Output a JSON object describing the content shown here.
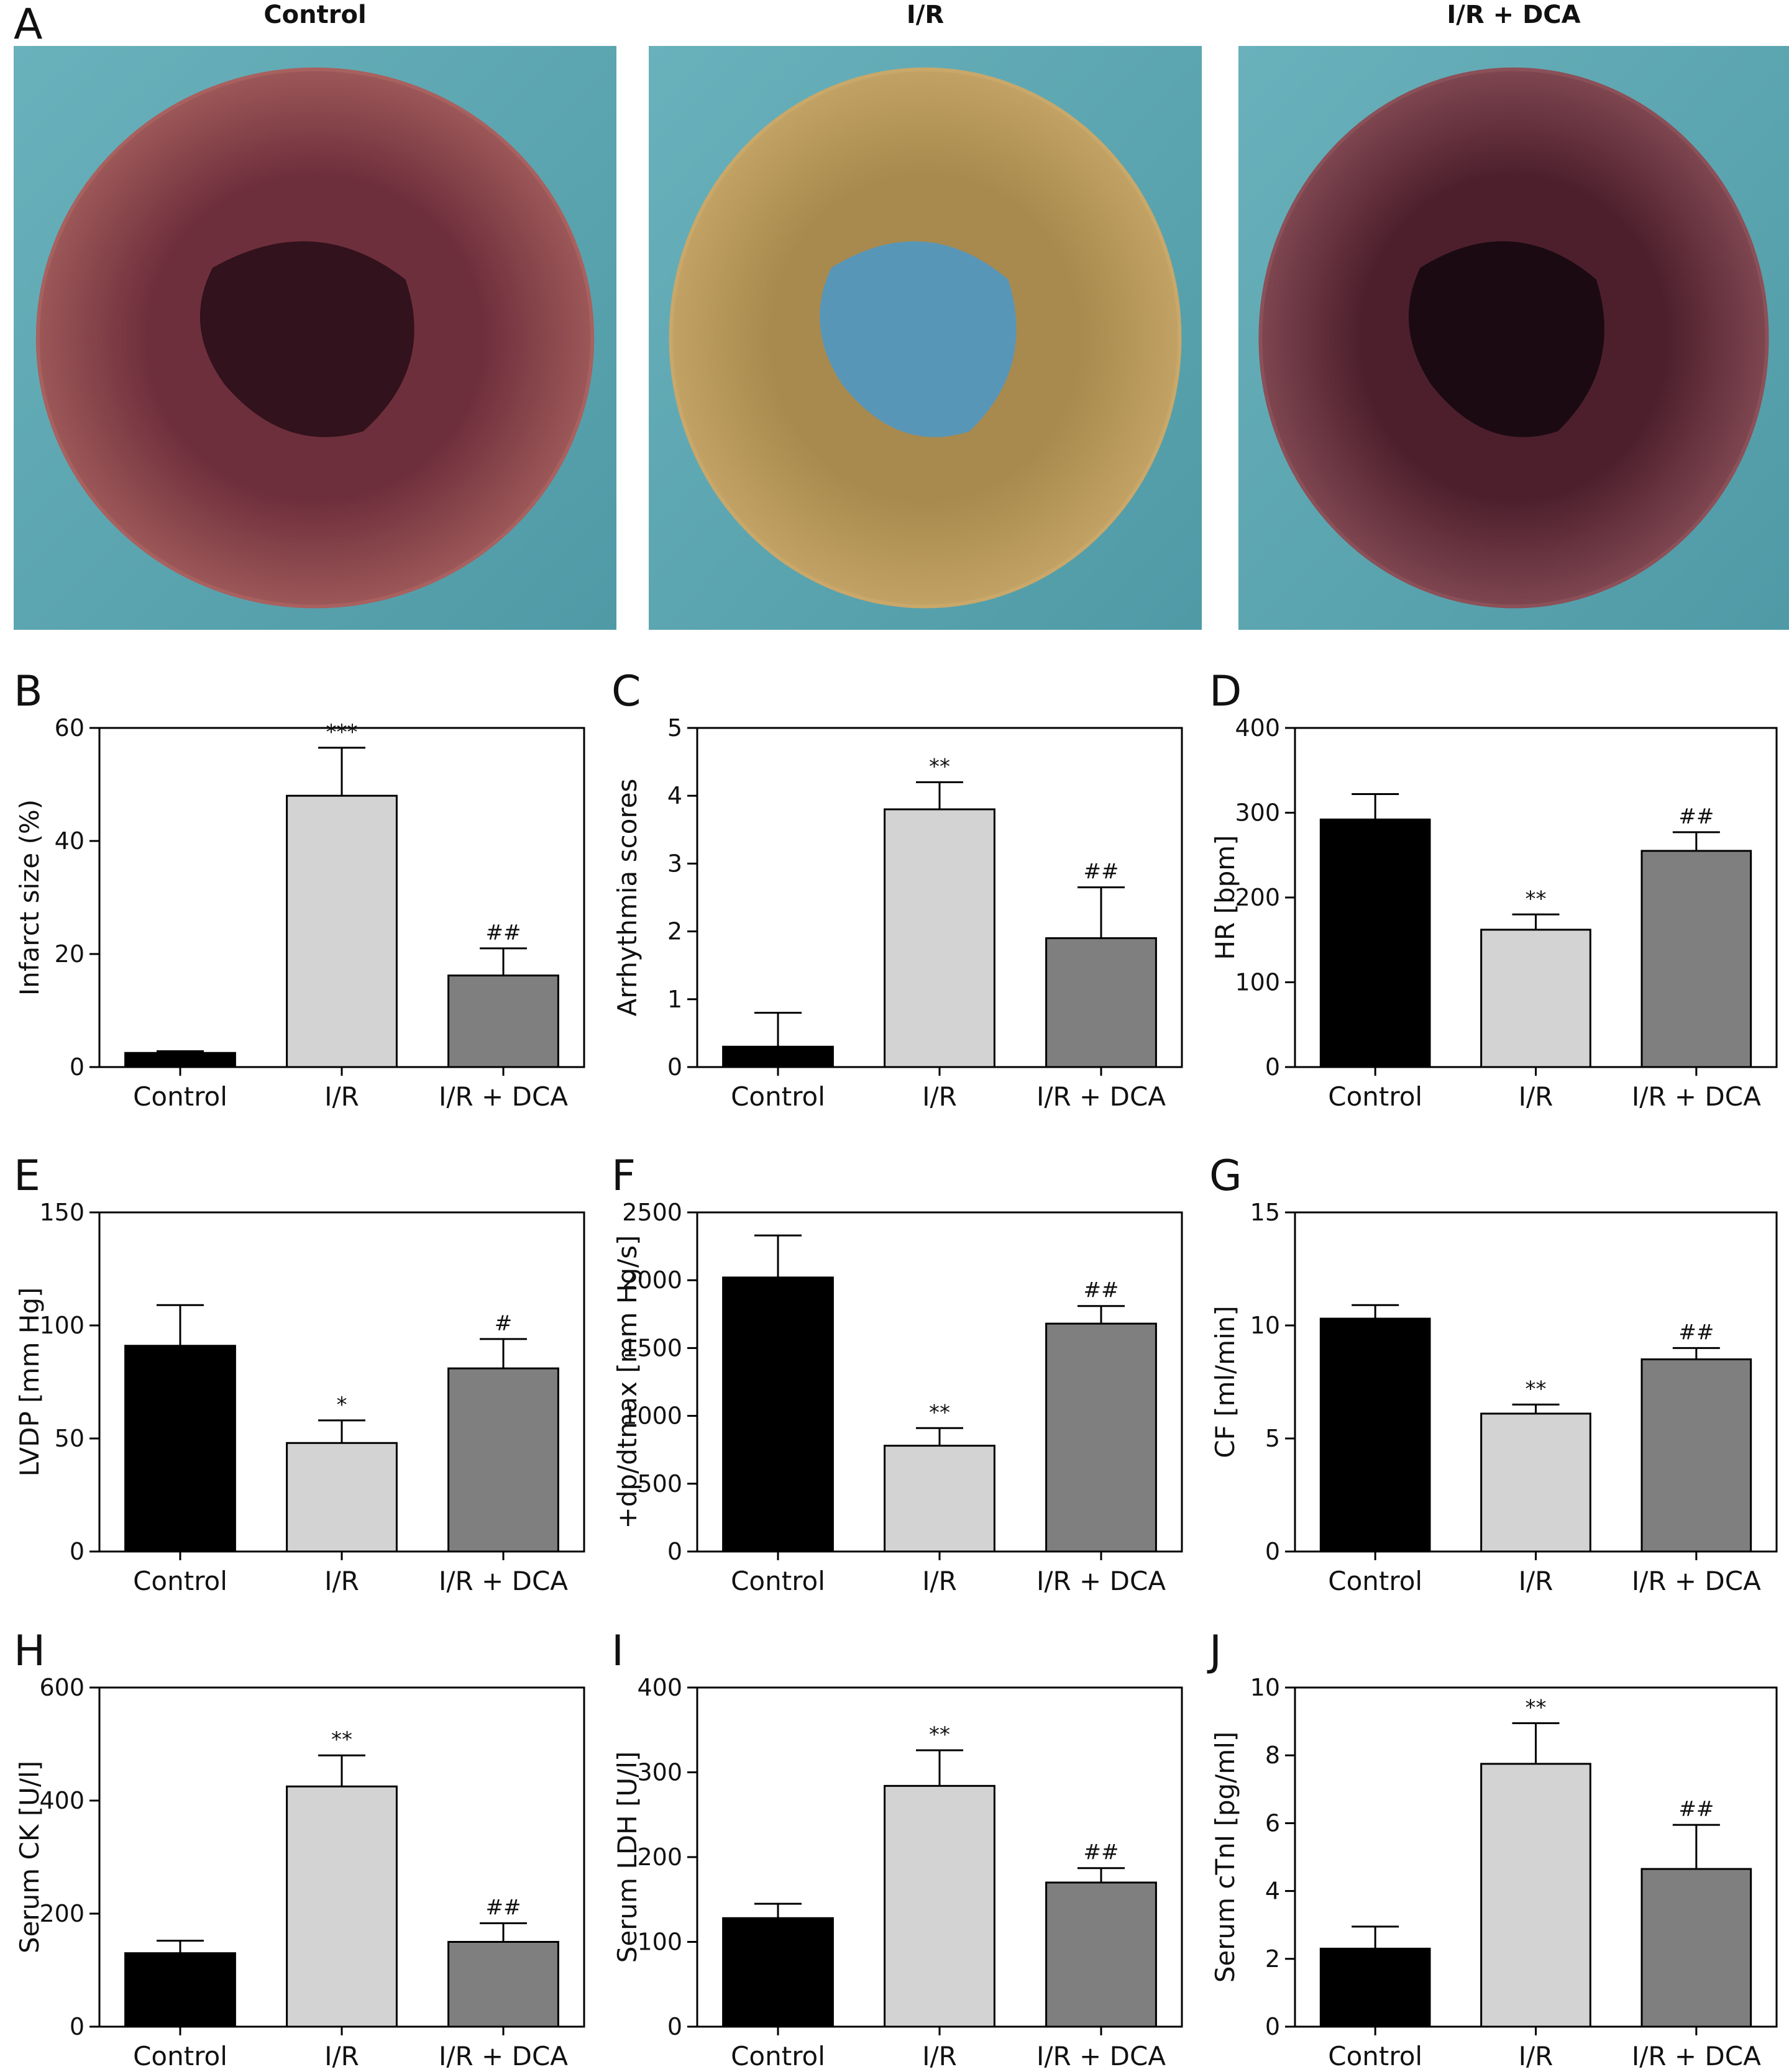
{
  "figure": {
    "panel_a": {
      "letter": "A",
      "photos": [
        {
          "label": "Control",
          "tissue": "#6e2f3c",
          "rim": "#a8615f",
          "cavity": "#2b1018"
        },
        {
          "label": "I/R",
          "tissue": "#a88a4e",
          "rim": "#c9a86a",
          "cavity": "#4f97c4"
        },
        {
          "label": "I/R + DCA",
          "tissue": "#4d1f2d",
          "rim": "#8b5058",
          "cavity": "#160810"
        }
      ]
    }
  },
  "chart_data": [
    {
      "id": "B",
      "type": "bar",
      "categories": [
        "Control",
        "I/R",
        "I/R + DCA"
      ],
      "values": [
        2.5,
        48,
        16.2
      ],
      "errors": [
        0.3,
        8.5,
        4.8
      ],
      "significance": [
        "",
        "***",
        "##"
      ],
      "ylabel": "Infarct size (%)",
      "ylim": [
        0,
        60
      ],
      "yticks": [
        0,
        20,
        40,
        60
      ],
      "colors": [
        "#000000",
        "#d3d3d3",
        "#7f7f7f"
      ]
    },
    {
      "id": "C",
      "type": "bar",
      "categories": [
        "Control",
        "I/R",
        "I/R + DCA"
      ],
      "values": [
        0.3,
        3.8,
        1.9
      ],
      "errors": [
        0.5,
        0.4,
        0.75
      ],
      "significance": [
        "",
        "**",
        "##"
      ],
      "ylabel": "Arrhythmia scores",
      "ylim": [
        0,
        5
      ],
      "yticks": [
        0,
        1,
        2,
        3,
        4,
        5
      ],
      "colors": [
        "#000000",
        "#d3d3d3",
        "#7f7f7f"
      ]
    },
    {
      "id": "D",
      "type": "bar",
      "categories": [
        "Control",
        "I/R",
        "I/R + DCA"
      ],
      "values": [
        292,
        162,
        255
      ],
      "errors": [
        30,
        18,
        22
      ],
      "significance": [
        "",
        "**",
        "##"
      ],
      "ylabel": "HR [bpm]",
      "ylim": [
        0,
        400
      ],
      "yticks": [
        0,
        100,
        200,
        300,
        400
      ],
      "colors": [
        "#000000",
        "#d3d3d3",
        "#7f7f7f"
      ]
    },
    {
      "id": "E",
      "type": "bar",
      "categories": [
        "Control",
        "I/R",
        "I/R + DCA"
      ],
      "values": [
        91,
        48,
        81
      ],
      "errors": [
        18,
        10,
        13
      ],
      "significance": [
        "",
        "*",
        "#"
      ],
      "ylabel": "LVDP [mm Hg]",
      "ylim": [
        0,
        150
      ],
      "yticks": [
        0,
        50,
        100,
        150
      ],
      "colors": [
        "#000000",
        "#d3d3d3",
        "#7f7f7f"
      ]
    },
    {
      "id": "F",
      "type": "bar",
      "categories": [
        "Control",
        "I/R",
        "I/R + DCA"
      ],
      "values": [
        2020,
        780,
        1680
      ],
      "errors": [
        310,
        130,
        130
      ],
      "significance": [
        "",
        "**",
        "##"
      ],
      "ylabel": "+dp/dtmax [mm Hg/s]",
      "ylim": [
        0,
        2500
      ],
      "yticks": [
        0,
        500,
        1000,
        1500,
        2000,
        2500
      ],
      "colors": [
        "#000000",
        "#d3d3d3",
        "#7f7f7f"
      ]
    },
    {
      "id": "G",
      "type": "bar",
      "categories": [
        "Control",
        "I/R",
        "I/R + DCA"
      ],
      "values": [
        10.3,
        6.1,
        8.5
      ],
      "errors": [
        0.6,
        0.4,
        0.5
      ],
      "significance": [
        "",
        "**",
        "##"
      ],
      "ylabel": "CF [ml/min]",
      "ylim": [
        0,
        15
      ],
      "yticks": [
        0,
        5,
        10,
        15
      ],
      "colors": [
        "#000000",
        "#d3d3d3",
        "#7f7f7f"
      ]
    },
    {
      "id": "H",
      "type": "bar",
      "categories": [
        "Control",
        "I/R",
        "I/R + DCA"
      ],
      "values": [
        130,
        425,
        150
      ],
      "errors": [
        22,
        55,
        33
      ],
      "significance": [
        "",
        "**",
        "##"
      ],
      "ylabel": "Serum CK [U/l]",
      "ylim": [
        0,
        600
      ],
      "yticks": [
        0,
        200,
        400,
        600
      ],
      "colors": [
        "#000000",
        "#d3d3d3",
        "#7f7f7f"
      ]
    },
    {
      "id": "I",
      "type": "bar",
      "categories": [
        "Control",
        "I/R",
        "I/R + DCA"
      ],
      "values": [
        128,
        284,
        170
      ],
      "errors": [
        17,
        42,
        17
      ],
      "significance": [
        "",
        "**",
        "##"
      ],
      "ylabel": "Serum LDH [U/l]",
      "ylim": [
        0,
        400
      ],
      "yticks": [
        0,
        100,
        200,
        300,
        400
      ],
      "colors": [
        "#000000",
        "#d3d3d3",
        "#7f7f7f"
      ]
    },
    {
      "id": "J",
      "type": "bar",
      "categories": [
        "Control",
        "I/R",
        "I/R + DCA"
      ],
      "values": [
        2.3,
        7.75,
        4.65
      ],
      "errors": [
        0.65,
        1.2,
        1.3
      ],
      "significance": [
        "",
        "**",
        "##"
      ],
      "ylabel": "Serum cTnI [pg/ml]",
      "ylim": [
        0,
        10
      ],
      "yticks": [
        0,
        2,
        4,
        6,
        8,
        10
      ],
      "colors": [
        "#000000",
        "#d3d3d3",
        "#7f7f7f"
      ]
    }
  ]
}
